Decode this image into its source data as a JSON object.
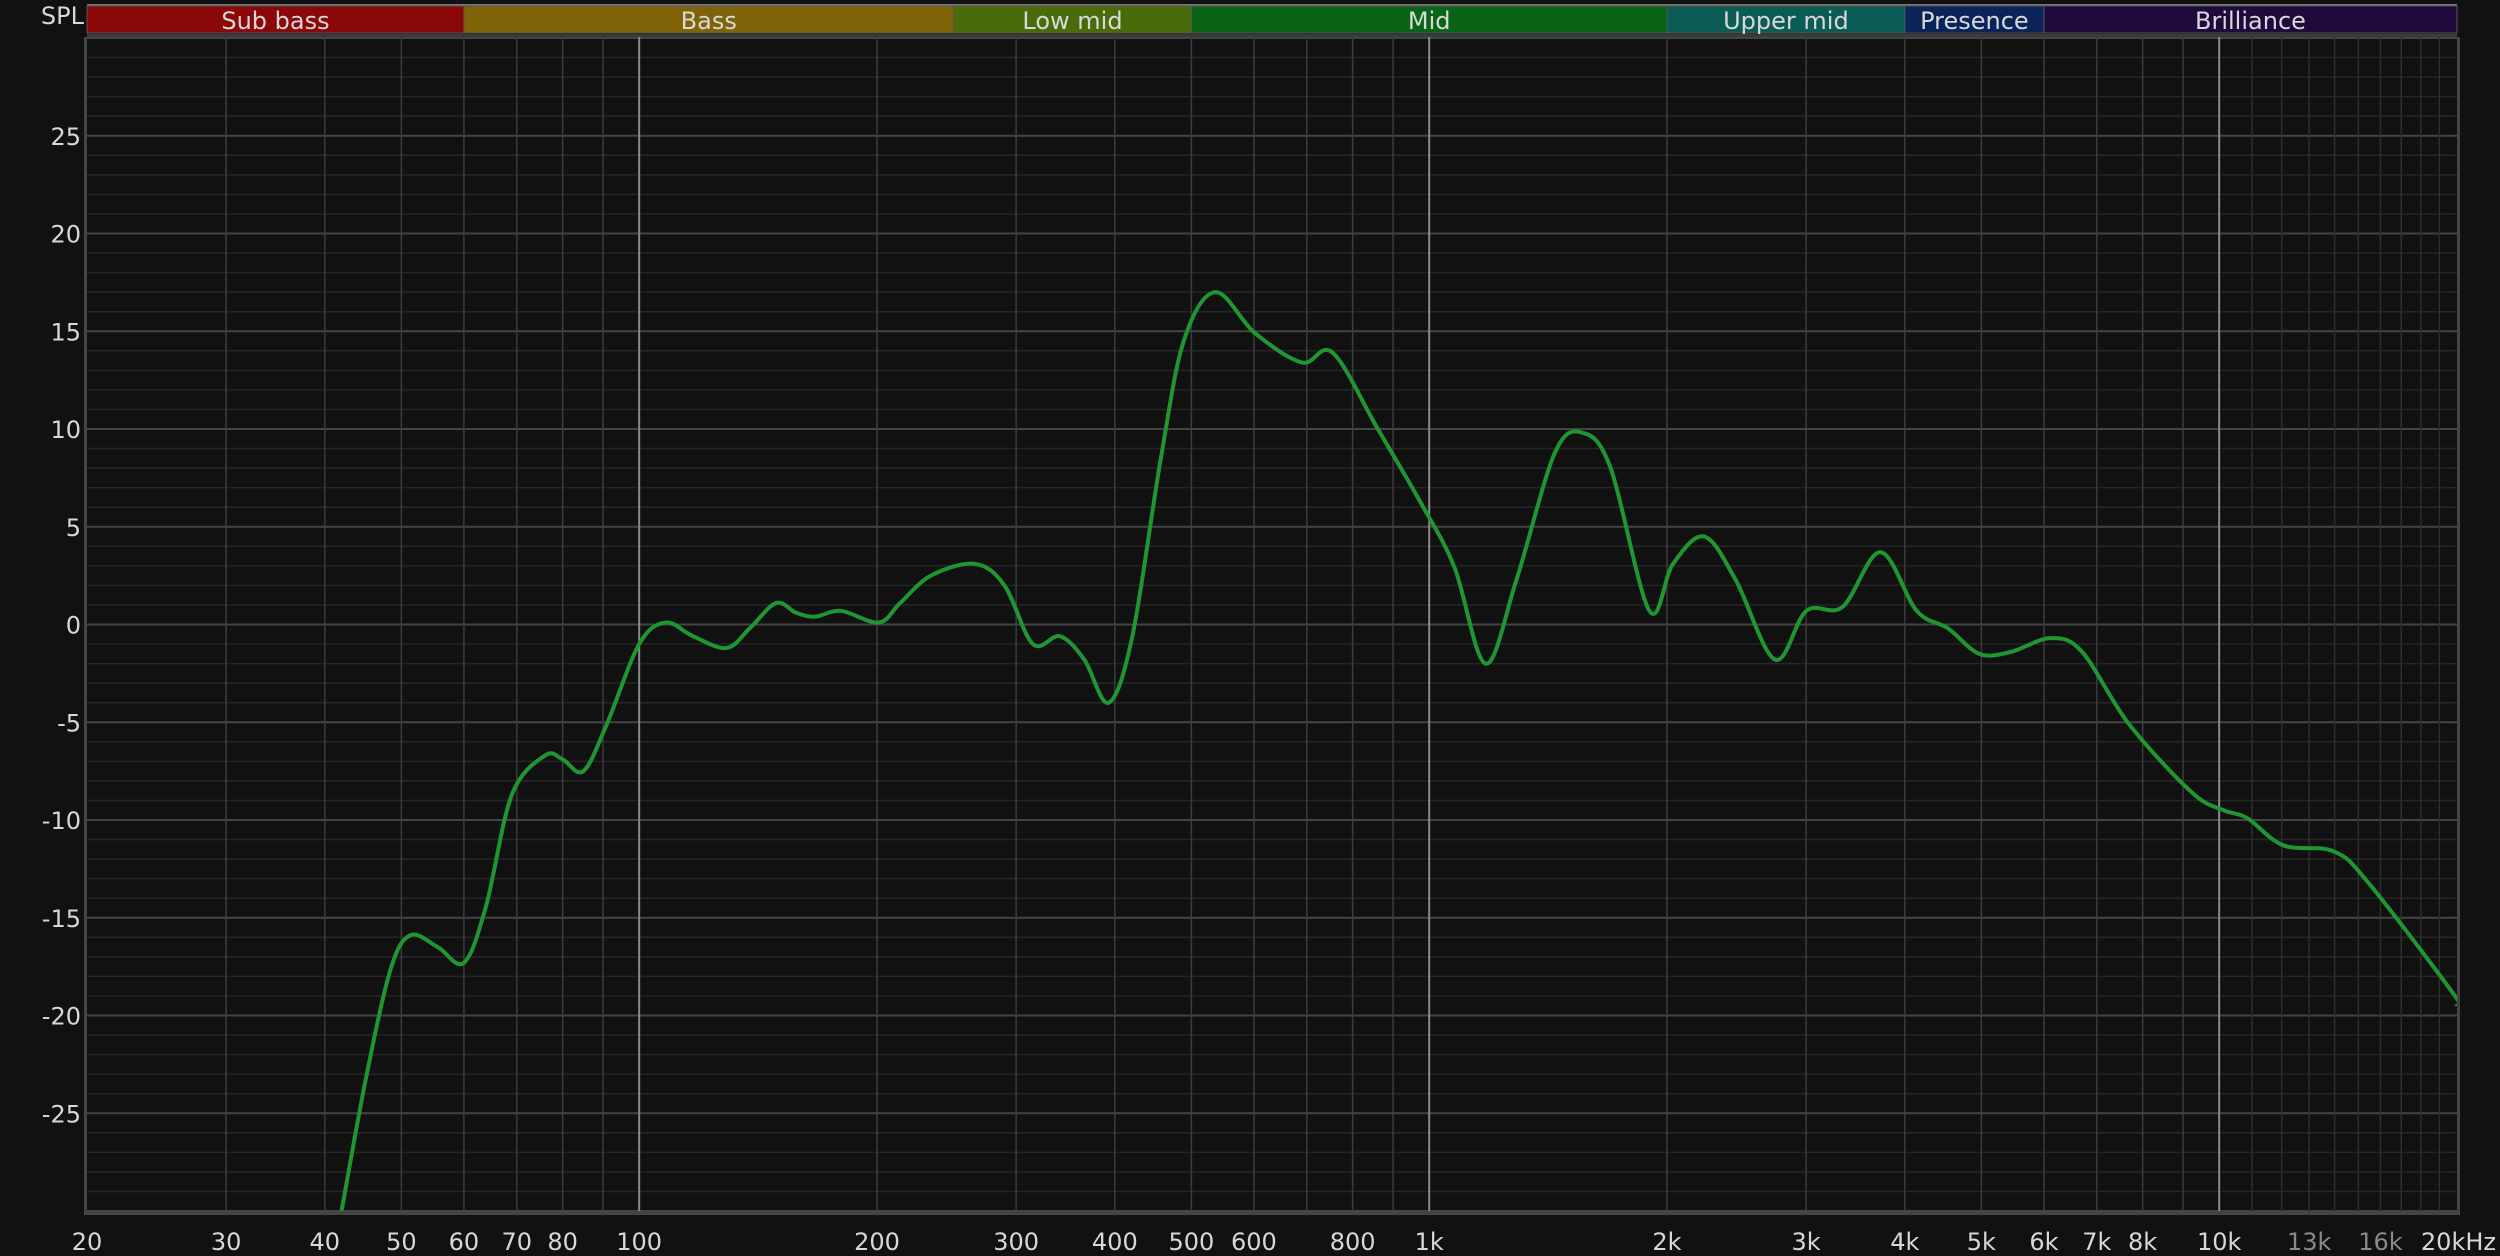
{
  "chart_data": {
    "type": "line",
    "ylabel": "SPL",
    "x_scale": "log",
    "xlim": [
      20,
      20000
    ],
    "ylim": [
      -30,
      30
    ],
    "grid": true,
    "line_color": "#1f9632",
    "bands": [
      {
        "label": "Sub bass",
        "from": 20,
        "to": 60,
        "color": "#8a0808"
      },
      {
        "label": "Bass",
        "from": 60,
        "to": 250,
        "color": "#806308"
      },
      {
        "label": "Low mid",
        "from": 250,
        "to": 500,
        "color": "#4a6b0a"
      },
      {
        "label": "Mid",
        "from": 500,
        "to": 2000,
        "color": "#0a6418"
      },
      {
        "label": "Upper mid",
        "from": 2000,
        "to": 4000,
        "color": "#0a5c55"
      },
      {
        "label": "Presence",
        "from": 4000,
        "to": 6000,
        "color": "#0a2459"
      },
      {
        "label": "Brilliance",
        "from": 6000,
        "to": 20000,
        "color": "#200a3d"
      }
    ],
    "y_ticks": [
      25,
      20,
      15,
      10,
      5,
      0,
      -5,
      -10,
      -15,
      -20,
      -25
    ],
    "x_ticks": [
      {
        "label": "20",
        "value": 20
      },
      {
        "label": "30",
        "value": 30
      },
      {
        "label": "40",
        "value": 40
      },
      {
        "label": "50",
        "value": 50
      },
      {
        "label": "60",
        "value": 60
      },
      {
        "label": "70",
        "value": 70
      },
      {
        "label": "80",
        "value": 80
      },
      {
        "label": "100",
        "value": 100
      },
      {
        "label": "200",
        "value": 200
      },
      {
        "label": "300",
        "value": 300
      },
      {
        "label": "400",
        "value": 400
      },
      {
        "label": "500",
        "value": 500
      },
      {
        "label": "600",
        "value": 600
      },
      {
        "label": "800",
        "value": 800
      },
      {
        "label": "1k",
        "value": 1000
      },
      {
        "label": "2k",
        "value": 2000
      },
      {
        "label": "3k",
        "value": 3000
      },
      {
        "label": "4k",
        "value": 4000
      },
      {
        "label": "5k",
        "value": 5000
      },
      {
        "label": "6k",
        "value": 6000
      },
      {
        "label": "7k",
        "value": 7000
      },
      {
        "label": "8k",
        "value": 8000
      },
      {
        "label": "10k",
        "value": 10000
      },
      {
        "label": "13k",
        "value": 13000,
        "dim": true
      },
      {
        "label": "16k",
        "value": 16000,
        "dim": true
      },
      {
        "label": "20kHz",
        "value": 20000
      }
    ],
    "series": [
      {
        "x": [
          42,
          45,
          48.4,
          51.3,
          55.6,
          60,
          64,
          69,
          76,
          80,
          85,
          91,
          100,
          108,
          117,
          129,
          138,
          149,
          158,
          167,
          180,
          201,
          214,
          234,
          266,
          290,
          315,
          341,
          366,
          393,
          421,
          457,
          489,
          536,
          602,
          690,
          755,
          861,
          983,
          1077,
          1179,
          1290,
          1443,
          1566,
          1697,
          1900,
          2035,
          2229,
          2442,
          2740,
          3002,
          3336,
          3726,
          4141,
          4537,
          4970,
          5450,
          6116,
          6707,
          7690,
          9240,
          10130,
          10850,
          12060,
          13960,
          15440,
          19800,
          20000
        ],
        "y": [
          -30,
          -23.4,
          -17.7,
          -15.9,
          -16.5,
          -17.3,
          -14.4,
          -8.7,
          -6.7,
          -6.9,
          -7.5,
          -5.1,
          -1.0,
          0.1,
          -0.6,
          -1.2,
          -0.2,
          1.1,
          0.6,
          0.4,
          0.7,
          0.1,
          1.1,
          2.5,
          3.1,
          2.0,
          -1.0,
          -0.6,
          -1.8,
          -4.0,
          -0.6,
          8.4,
          14.5,
          17.0,
          14.9,
          13.4,
          13.9,
          10.0,
          6.0,
          2.9,
          -2.0,
          2.3,
          8.8,
          9.8,
          8.0,
          0.7,
          3.1,
          4.5,
          2.3,
          -1.8,
          0.7,
          0.9,
          3.7,
          0.7,
          -0.2,
          -1.5,
          -1.4,
          -0.7,
          -1.4,
          -5.1,
          -8.6,
          -9.5,
          -9.9,
          -11.3,
          -11.6,
          -13.2,
          -18.9,
          -19.5
        ]
      }
    ]
  }
}
